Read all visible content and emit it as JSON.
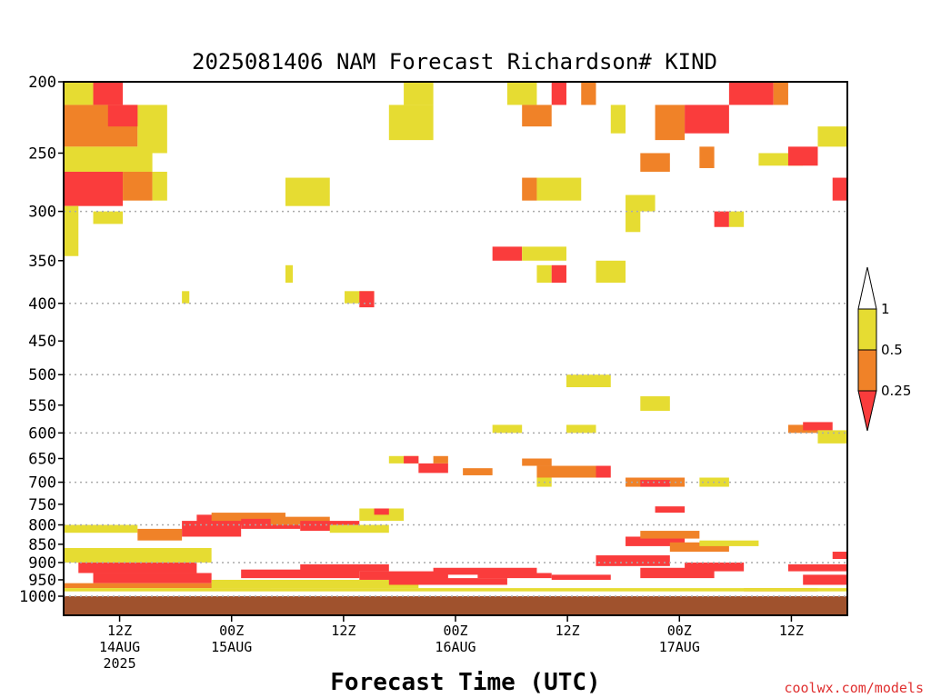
{
  "chart_data": {
    "type": "heatmap",
    "title": "2025081406 NAM Forecast Richardson# KIND",
    "xlabel": "Forecast Time (UTC)",
    "ylabel": "",
    "y_axis": {
      "scale": "log",
      "inverted": true,
      "range": [
        200,
        1000
      ],
      "ticks": [
        "200",
        "250",
        "300",
        "350",
        "400",
        "450",
        "500",
        "550",
        "600",
        "650",
        "700",
        "750",
        "800",
        "850",
        "900",
        "950",
        "1000"
      ]
    },
    "x_axis": {
      "range": [
        "2025-08-14 06Z",
        "2025-08-17 18Z"
      ],
      "ticks": [
        {
          "time": "2025-08-14 12Z",
          "label": "12Z",
          "date": "14AUG",
          "year": "2025"
        },
        {
          "time": "2025-08-15 00Z",
          "label": "00Z",
          "date": "15AUG",
          "year": ""
        },
        {
          "time": "2025-08-15 12Z",
          "label": "12Z",
          "date": "",
          "year": ""
        },
        {
          "time": "2025-08-16 00Z",
          "label": "00Z",
          "date": "16AUG",
          "year": ""
        },
        {
          "time": "2025-08-16 12Z",
          "label": "12Z",
          "date": "",
          "year": ""
        },
        {
          "time": "2025-08-17 00Z",
          "label": "00Z",
          "date": "17AUG",
          "year": ""
        },
        {
          "time": "2025-08-17 12Z",
          "label": "12Z",
          "date": "",
          "year": ""
        }
      ]
    },
    "gridlines": [
      "300",
      "400",
      "500",
      "600",
      "700",
      "800",
      "900",
      "1000"
    ],
    "legend": {
      "placement": "right",
      "levels": [
        "1",
        "0.5",
        "0.25"
      ],
      "bins": [
        {
          "range": "> 1",
          "color": "#ffffff"
        },
        {
          "range": "0.5 - 1",
          "color": "#e6dc32"
        },
        {
          "range": "0.25 - 0.5",
          "color": "#f08228"
        },
        {
          "range": "< 0.25",
          "color": "#fa3c3c"
        }
      ]
    },
    "colors": {
      "weak": "#e6dc32",
      "moderate": "#f08228",
      "strong": "#fa3c3c",
      "ground": "#a0522d"
    },
    "cells": [
      {
        "t": [
          0,
          2
        ],
        "p": [
          200,
          215
        ],
        "v": "weak"
      },
      {
        "t": [
          2,
          4
        ],
        "p": [
          200,
          215
        ],
        "v": "strong"
      },
      {
        "t": [
          0,
          5
        ],
        "p": [
          215,
          245
        ],
        "v": "moderate"
      },
      {
        "t": [
          5,
          7
        ],
        "p": [
          215,
          250
        ],
        "v": "weak"
      },
      {
        "t": [
          3,
          5
        ],
        "p": [
          215,
          230
        ],
        "v": "strong"
      },
      {
        "t": [
          0,
          6
        ],
        "p": [
          245,
          265
        ],
        "v": "weak"
      },
      {
        "t": [
          0,
          4
        ],
        "p": [
          265,
          295
        ],
        "v": "strong"
      },
      {
        "t": [
          4,
          6
        ],
        "p": [
          265,
          290
        ],
        "v": "moderate"
      },
      {
        "t": [
          6,
          7
        ],
        "p": [
          265,
          290
        ],
        "v": "weak"
      },
      {
        "t": [
          0,
          1
        ],
        "p": [
          295,
          345
        ],
        "v": "weak"
      },
      {
        "t": [
          2,
          4
        ],
        "p": [
          300,
          312
        ],
        "v": "weak"
      },
      {
        "t": [
          8,
          8.5
        ],
        "p": [
          385,
          400
        ],
        "v": "weak"
      },
      {
        "t": [
          15,
          18
        ],
        "p": [
          270,
          295
        ],
        "v": "weak"
      },
      {
        "t": [
          15,
          15.5
        ],
        "p": [
          355,
          375
        ],
        "v": "weak"
      },
      {
        "t": [
          19,
          21
        ],
        "p": [
          385,
          400
        ],
        "v": "weak"
      },
      {
        "t": [
          20,
          21
        ],
        "p": [
          385,
          405
        ],
        "v": "strong"
      },
      {
        "t": [
          23,
          25
        ],
        "p": [
          200,
          215
        ],
        "v": "weak"
      },
      {
        "t": [
          22,
          25
        ],
        "p": [
          215,
          240
        ],
        "v": "weak"
      },
      {
        "t": [
          30,
          32
        ],
        "p": [
          200,
          215
        ],
        "v": "weak"
      },
      {
        "t": [
          31,
          33
        ],
        "p": [
          215,
          230
        ],
        "v": "moderate"
      },
      {
        "t": [
          33,
          34
        ],
        "p": [
          200,
          215
        ],
        "v": "strong"
      },
      {
        "t": [
          29,
          31
        ],
        "p": [
          335,
          350
        ],
        "v": "strong"
      },
      {
        "t": [
          31,
          32
        ],
        "p": [
          270,
          290
        ],
        "v": "moderate"
      },
      {
        "t": [
          32,
          35
        ],
        "p": [
          270,
          290
        ],
        "v": "weak"
      },
      {
        "t": [
          32,
          33
        ],
        "p": [
          355,
          375
        ],
        "v": "weak"
      },
      {
        "t": [
          33,
          34
        ],
        "p": [
          355,
          375
        ],
        "v": "strong"
      },
      {
        "t": [
          31,
          34
        ],
        "p": [
          335,
          350
        ],
        "v": "weak"
      },
      {
        "t": [
          35,
          36
        ],
        "p": [
          200,
          215
        ],
        "v": "moderate"
      },
      {
        "t": [
          37,
          38
        ],
        "p": [
          215,
          235
        ],
        "v": "weak"
      },
      {
        "t": [
          38,
          40
        ],
        "p": [
          285,
          300
        ],
        "v": "weak"
      },
      {
        "t": [
          36,
          38
        ],
        "p": [
          350,
          375
        ],
        "v": "weak"
      },
      {
        "t": [
          38,
          39
        ],
        "p": [
          300,
          320
        ],
        "v": "weak"
      },
      {
        "t": [
          40,
          42
        ],
        "p": [
          215,
          240
        ],
        "v": "moderate"
      },
      {
        "t": [
          42,
          45
        ],
        "p": [
          215,
          235
        ],
        "v": "strong"
      },
      {
        "t": [
          44,
          45
        ],
        "p": [
          300,
          315
        ],
        "v": "strong"
      },
      {
        "t": [
          45,
          46
        ],
        "p": [
          300,
          315
        ],
        "v": "weak"
      },
      {
        "t": [
          45,
          48
        ],
        "p": [
          200,
          215
        ],
        "v": "strong"
      },
      {
        "t": [
          48,
          49
        ],
        "p": [
          200,
          215
        ],
        "v": "moderate"
      },
      {
        "t": [
          47,
          50
        ],
        "p": [
          250,
          260
        ],
        "v": "weak"
      },
      {
        "t": [
          49,
          51
        ],
        "p": [
          245,
          260
        ],
        "v": "strong"
      },
      {
        "t": [
          51,
          53
        ],
        "p": [
          230,
          245
        ],
        "v": "weak"
      },
      {
        "t": [
          52,
          53
        ],
        "p": [
          270,
          290
        ],
        "v": "strong"
      },
      {
        "t": [
          39,
          41
        ],
        "p": [
          250,
          265
        ],
        "v": "moderate"
      },
      {
        "t": [
          43,
          44
        ],
        "p": [
          245,
          262
        ],
        "v": "moderate"
      },
      {
        "t": [
          34,
          37
        ],
        "p": [
          500,
          520
        ],
        "v": "weak"
      },
      {
        "t": [
          39,
          41
        ],
        "p": [
          535,
          560
        ],
        "v": "weak"
      },
      {
        "t": [
          29,
          31
        ],
        "p": [
          585,
          600
        ],
        "v": "weak"
      },
      {
        "t": [
          34,
          36
        ],
        "p": [
          585,
          600
        ],
        "v": "weak"
      },
      {
        "t": [
          22,
          24
        ],
        "p": [
          645,
          660
        ],
        "v": "weak"
      },
      {
        "t": [
          23,
          24
        ],
        "p": [
          645,
          660
        ],
        "v": "strong"
      },
      {
        "t": [
          24,
          26
        ],
        "p": [
          660,
          680
        ],
        "v": "strong"
      },
      {
        "t": [
          25,
          26
        ],
        "p": [
          645,
          660
        ],
        "v": "moderate"
      },
      {
        "t": [
          27,
          29
        ],
        "p": [
          670,
          685
        ],
        "v": "moderate"
      },
      {
        "t": [
          31,
          33
        ],
        "p": [
          650,
          665
        ],
        "v": "moderate"
      },
      {
        "t": [
          32,
          36
        ],
        "p": [
          665,
          690
        ],
        "v": "moderate"
      },
      {
        "t": [
          36,
          37
        ],
        "p": [
          665,
          690
        ],
        "v": "strong"
      },
      {
        "t": [
          32,
          33
        ],
        "p": [
          690,
          710
        ],
        "v": "weak"
      },
      {
        "t": [
          38,
          42
        ],
        "p": [
          690,
          710
        ],
        "v": "moderate"
      },
      {
        "t": [
          39,
          41
        ],
        "p": [
          695,
          710
        ],
        "v": "strong"
      },
      {
        "t": [
          43,
          45
        ],
        "p": [
          690,
          710
        ],
        "v": "weak"
      },
      {
        "t": [
          40,
          42
        ],
        "p": [
          755,
          770
        ],
        "v": "strong"
      },
      {
        "t": [
          49,
          51
        ],
        "p": [
          585,
          600
        ],
        "v": "moderate"
      },
      {
        "t": [
          50,
          52
        ],
        "p": [
          580,
          595
        ],
        "v": "strong"
      },
      {
        "t": [
          51,
          53
        ],
        "p": [
          595,
          620
        ],
        "v": "weak"
      },
      {
        "t": [
          0,
          5
        ],
        "p": [
          800,
          820
        ],
        "v": "weak"
      },
      {
        "t": [
          5,
          8
        ],
        "p": [
          810,
          840
        ],
        "v": "moderate"
      },
      {
        "t": [
          8,
          12
        ],
        "p": [
          790,
          830
        ],
        "v": "strong"
      },
      {
        "t": [
          9,
          14
        ],
        "p": [
          775,
          800
        ],
        "v": "strong"
      },
      {
        "t": [
          10,
          15
        ],
        "p": [
          770,
          790
        ],
        "v": "moderate"
      },
      {
        "t": [
          12,
          16
        ],
        "p": [
          785,
          810
        ],
        "v": "strong"
      },
      {
        "t": [
          14,
          18
        ],
        "p": [
          780,
          800
        ],
        "v": "moderate"
      },
      {
        "t": [
          16,
          20
        ],
        "p": [
          790,
          815
        ],
        "v": "strong"
      },
      {
        "t": [
          18,
          22
        ],
        "p": [
          800,
          820
        ],
        "v": "weak"
      },
      {
        "t": [
          20,
          23
        ],
        "p": [
          760,
          790
        ],
        "v": "weak"
      },
      {
        "t": [
          21,
          22
        ],
        "p": [
          760,
          775
        ],
        "v": "strong"
      },
      {
        "t": [
          0,
          10
        ],
        "p": [
          860,
          900
        ],
        "v": "weak"
      },
      {
        "t": [
          1,
          9
        ],
        "p": [
          900,
          930
        ],
        "v": "strong"
      },
      {
        "t": [
          2,
          10
        ],
        "p": [
          930,
          960
        ],
        "v": "strong"
      },
      {
        "t": [
          0,
          14
        ],
        "p": [
          960,
          975
        ],
        "v": "moderate"
      },
      {
        "t": [
          10,
          24
        ],
        "p": [
          950,
          975
        ],
        "v": "weak"
      },
      {
        "t": [
          12,
          20
        ],
        "p": [
          920,
          945
        ],
        "v": "strong"
      },
      {
        "t": [
          16,
          22
        ],
        "p": [
          905,
          925
        ],
        "v": "strong"
      },
      {
        "t": [
          20,
          26
        ],
        "p": [
          925,
          950
        ],
        "v": "strong"
      },
      {
        "t": [
          22,
          30
        ],
        "p": [
          945,
          965
        ],
        "v": "strong"
      },
      {
        "t": [
          25,
          32
        ],
        "p": [
          915,
          935
        ],
        "v": "strong"
      },
      {
        "t": [
          28,
          33
        ],
        "p": [
          930,
          945
        ],
        "v": "strong"
      },
      {
        "t": [
          33,
          37
        ],
        "p": [
          935,
          950
        ],
        "v": "strong"
      },
      {
        "t": [
          36,
          41
        ],
        "p": [
          880,
          910
        ],
        "v": "strong"
      },
      {
        "t": [
          38,
          42
        ],
        "p": [
          830,
          855
        ],
        "v": "strong"
      },
      {
        "t": [
          39,
          43
        ],
        "p": [
          815,
          835
        ],
        "v": "moderate"
      },
      {
        "t": [
          41,
          45
        ],
        "p": [
          845,
          870
        ],
        "v": "moderate"
      },
      {
        "t": [
          43,
          47
        ],
        "p": [
          840,
          855
        ],
        "v": "weak"
      },
      {
        "t": [
          39,
          44
        ],
        "p": [
          915,
          945
        ],
        "v": "strong"
      },
      {
        "t": [
          42,
          46
        ],
        "p": [
          900,
          925
        ],
        "v": "strong"
      },
      {
        "t": [
          46,
          51
        ],
        "p": [
          975,
          985
        ],
        "v": "moderate"
      },
      {
        "t": [
          49,
          53
        ],
        "p": [
          905,
          925
        ],
        "v": "strong"
      },
      {
        "t": [
          50,
          53
        ],
        "p": [
          935,
          965
        ],
        "v": "strong"
      },
      {
        "t": [
          52,
          53
        ],
        "p": [
          870,
          890
        ],
        "v": "strong"
      },
      {
        "t": [
          0,
          53
        ],
        "p": [
          975,
          985
        ],
        "v": "weak"
      }
    ]
  },
  "credit": "coolwx.com/models"
}
